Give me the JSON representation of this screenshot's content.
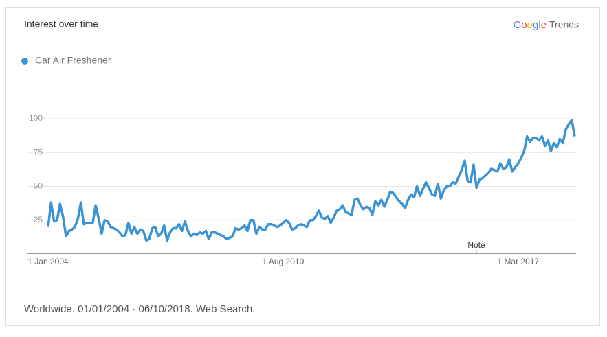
{
  "chart_data": {
    "type": "line",
    "title": "Interest over time",
    "brand": "Google",
    "product": "Trends",
    "caption": "Worldwide. 01/01/2004 - 06/10/2018. Web Search.",
    "annotation": "Note",
    "categories": [
      "1 Jan 2004",
      null,
      null,
      null,
      null,
      null,
      null,
      null,
      null,
      null,
      null,
      null,
      null,
      null,
      null,
      null,
      null,
      null,
      null,
      null,
      null,
      null,
      null,
      null,
      null,
      null,
      null,
      null,
      null,
      null,
      null,
      null,
      null,
      null,
      null,
      null,
      null,
      null,
      null,
      null,
      null,
      null,
      null,
      null,
      null,
      null,
      null,
      null,
      null,
      null,
      null,
      null,
      null,
      null,
      null,
      null,
      null,
      null,
      null,
      null,
      null,
      null,
      null,
      null,
      null,
      null,
      null,
      null,
      null,
      null,
      null,
      null,
      null,
      null,
      null,
      null,
      null,
      null,
      null,
      "1 Aug 2010",
      null,
      null,
      null,
      null,
      null,
      null,
      null,
      null,
      null,
      null,
      null,
      null,
      null,
      null,
      null,
      null,
      null,
      null,
      null,
      null,
      null,
      null,
      null,
      null,
      null,
      null,
      null,
      null,
      null,
      null,
      null,
      null,
      null,
      null,
      null,
      null,
      null,
      null,
      null,
      null,
      null,
      null,
      null,
      null,
      null,
      null,
      null,
      null,
      null,
      null,
      null,
      null,
      null,
      null,
      null,
      null,
      null,
      null,
      null,
      null,
      null,
      null,
      null,
      null,
      null,
      null,
      null,
      null,
      null,
      null,
      null,
      null,
      null,
      null,
      null,
      null,
      null,
      null,
      "1 Mar 2017",
      null,
      null,
      null,
      null,
      null,
      null,
      null,
      null,
      null,
      null,
      null,
      null,
      null,
      null,
      null,
      null,
      null,
      null,
      null
    ],
    "series": [
      {
        "name": "Car Air Freshener",
        "color": "#3b92d5",
        "values": [
          20,
          38,
          24,
          25,
          37,
          28,
          13,
          17,
          18,
          20,
          26,
          38,
          22,
          23,
          23,
          23,
          36,
          26,
          15,
          25,
          24,
          20,
          19,
          18,
          16,
          13,
          14,
          23,
          15,
          20,
          15,
          18,
          17,
          10,
          11,
          19,
          20,
          13,
          15,
          21,
          10,
          16,
          19,
          19,
          22,
          17,
          24,
          17,
          13,
          15,
          14,
          16,
          15,
          17,
          11,
          16,
          16,
          15,
          14,
          13,
          11,
          12,
          13,
          19,
          18,
          19,
          21,
          17,
          25,
          25,
          15,
          20,
          18,
          18,
          22,
          22,
          21,
          20,
          21,
          23,
          25,
          23,
          18,
          19,
          21,
          22,
          21,
          20,
          25,
          25,
          28,
          32,
          27,
          26,
          28,
          23,
          27,
          32,
          33,
          36,
          31,
          30,
          29,
          40,
          41,
          36,
          33,
          35,
          34,
          29,
          39,
          36,
          40,
          35,
          40,
          46,
          45,
          42,
          39,
          37,
          34,
          40,
          44,
          42,
          50,
          43,
          48,
          53,
          49,
          44,
          43,
          52,
          41,
          47,
          50,
          50,
          53,
          52,
          57,
          62,
          69,
          54,
          53,
          66,
          49,
          55,
          56,
          58,
          60,
          63,
          62,
          61,
          67,
          63,
          64,
          70,
          61,
          64,
          67,
          71,
          76,
          87,
          83,
          86,
          86,
          84,
          87,
          80,
          84,
          76,
          82,
          79,
          85,
          82,
          92,
          96,
          99,
          87
        ]
      }
    ],
    "ylim": [
      0,
      100
    ],
    "yticks": [
      25,
      50,
      75,
      100
    ],
    "grid": true
  }
}
